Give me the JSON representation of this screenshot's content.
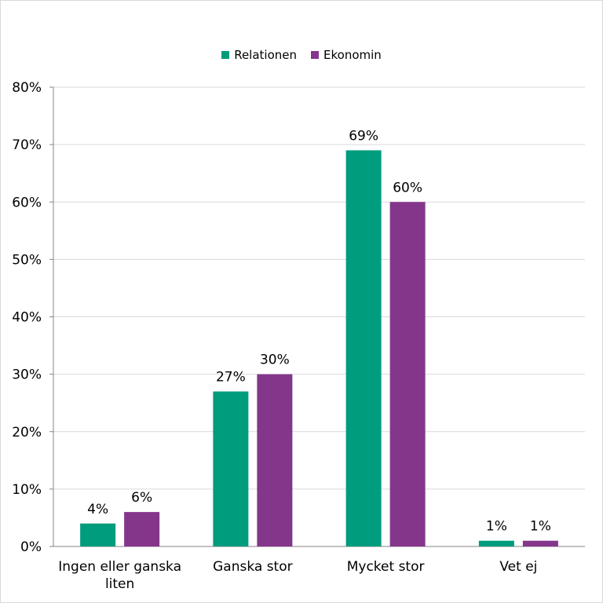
{
  "chart_data": {
    "type": "bar",
    "categories": [
      "Ingen eller ganska liten",
      "Ganska stor",
      "Mycket stor",
      "Vet ej"
    ],
    "category_lines": [
      [
        "Ingen eller ganska",
        "liten"
      ],
      [
        "Ganska stor"
      ],
      [
        "Mycket stor"
      ],
      [
        "Vet ej"
      ]
    ],
    "series": [
      {
        "name": "Relationen",
        "color": "#009c7e",
        "values": [
          4,
          27,
          69,
          1
        ],
        "labels": [
          "4%",
          "27%",
          "69%",
          "1%"
        ]
      },
      {
        "name": "Ekonomin",
        "color": "#84368b",
        "values": [
          6,
          30,
          60,
          1
        ],
        "labels": [
          "6%",
          "30%",
          "60%",
          "1%"
        ]
      }
    ],
    "ylim": [
      0,
      80
    ],
    "yticks": [
      0,
      10,
      20,
      30,
      40,
      50,
      60,
      70,
      80
    ],
    "ytick_labels": [
      "0%",
      "10%",
      "20%",
      "30%",
      "40%",
      "50%",
      "60%",
      "70%",
      "80%"
    ],
    "grid": true,
    "legend_position": "top-center"
  }
}
